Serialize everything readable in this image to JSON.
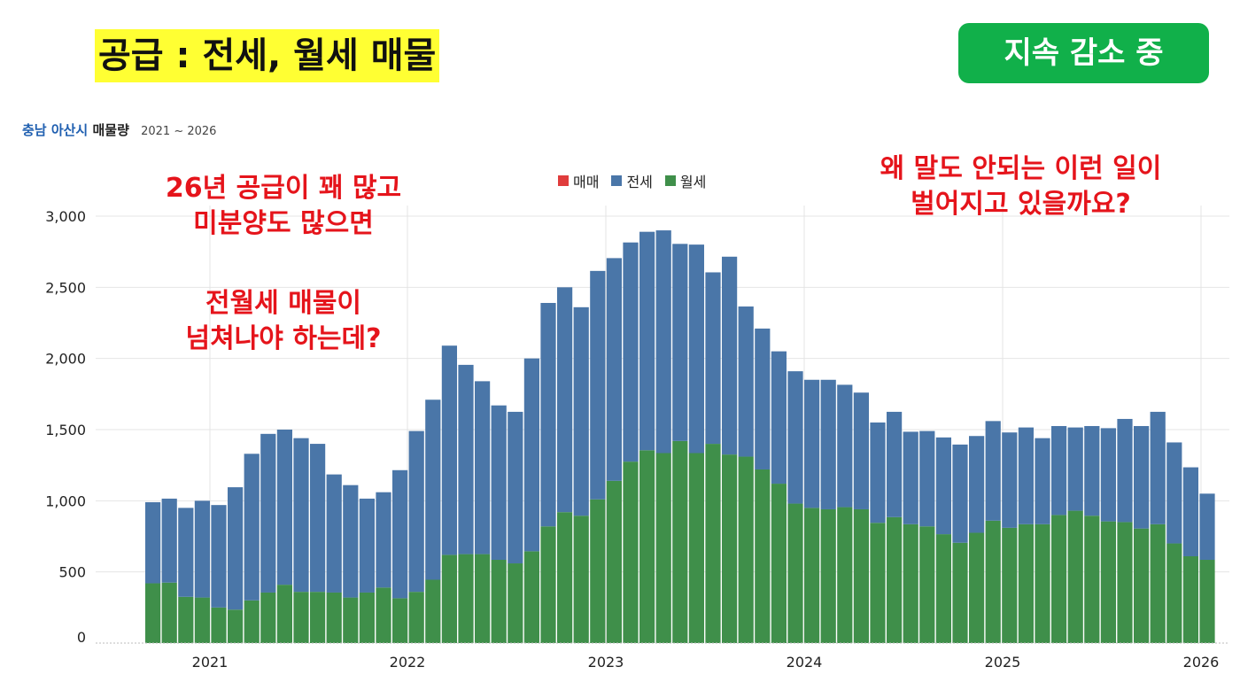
{
  "header": {
    "headline": "공급 : 전세, 월세 매물",
    "badge": "지속 감소 중"
  },
  "subtitle": {
    "region": "충남 아산시",
    "measure": "매물량",
    "period": "2021 ~ 2026"
  },
  "annotations": {
    "left_top_line1": "26년 공급이 꽤 많고",
    "left_top_line2": "미분양도 많으면",
    "left_bottom_line1": "전월세 매물이",
    "left_bottom_line2": "넘쳐나야 하는데?",
    "right_line1": "왜 말도 안되는 이런 일이",
    "right_line2": "벌어지고 있을까요?"
  },
  "colors": {
    "매매": "#e03c3c",
    "전세": "#4a76a8",
    "월세": "#3f8f4a",
    "grid": "#e4e4e4",
    "annotation": "#e5141b"
  },
  "chart_data": {
    "type": "bar",
    "stacked": true,
    "title": "",
    "xlabel": "",
    "ylabel": "",
    "ylim": [
      0,
      3000
    ],
    "yticks": [
      0,
      500,
      1000,
      1500,
      2000,
      2500,
      3000
    ],
    "ytick_labels": [
      "0",
      "500",
      "1,000",
      "1,500",
      "2,000",
      "2,500",
      "3,000"
    ],
    "xtick_labels": [
      "2021",
      "2022",
      "2023",
      "2024",
      "2025",
      "2026"
    ],
    "legend": [
      "매매",
      "전세",
      "월세"
    ],
    "legend_position": "top-center",
    "grid": true,
    "categories": [
      "2020-09",
      "2020-10",
      "2020-11",
      "2020-12",
      "2021-01",
      "2021-02",
      "2021-03",
      "2021-04",
      "2021-05",
      "2021-06",
      "2021-07",
      "2021-08",
      "2021-09",
      "2021-10",
      "2021-11",
      "2021-12",
      "2022-01",
      "2022-02",
      "2022-03",
      "2022-04",
      "2022-05",
      "2022-06",
      "2022-07",
      "2022-08",
      "2022-09",
      "2022-10",
      "2022-11",
      "2022-12",
      "2023-01",
      "2023-02",
      "2023-03",
      "2023-04",
      "2023-05",
      "2023-06",
      "2023-07",
      "2023-08",
      "2023-09",
      "2023-10",
      "2023-11",
      "2023-12",
      "2024-01",
      "2024-02",
      "2024-03",
      "2024-04",
      "2024-05",
      "2024-06",
      "2024-07",
      "2024-08",
      "2024-09",
      "2024-10",
      "2024-11",
      "2024-12",
      "2025-01",
      "2025-02",
      "2025-03",
      "2025-04",
      "2025-05",
      "2025-06",
      "2025-07",
      "2025-08",
      "2025-09",
      "2025-10",
      "2025-11",
      "2025-12",
      "2026-01"
    ],
    "series": [
      {
        "name": "매매",
        "values": [
          0,
          0,
          0,
          0,
          0,
          0,
          0,
          0,
          0,
          0,
          0,
          0,
          0,
          0,
          0,
          0,
          0,
          0,
          0,
          0,
          0,
          0,
          0,
          0,
          0,
          0,
          0,
          0,
          0,
          0,
          0,
          0,
          0,
          0,
          0,
          0,
          0,
          0,
          0,
          0,
          0,
          0,
          0,
          0,
          0,
          0,
          0,
          0,
          0,
          0,
          0,
          0,
          0,
          0,
          0,
          0,
          0,
          0,
          0,
          0,
          0,
          0,
          0,
          0,
          0
        ]
      },
      {
        "name": "전세",
        "values": [
          570,
          590,
          625,
          680,
          720,
          860,
          1030,
          1115,
          1090,
          1080,
          1040,
          830,
          790,
          660,
          670,
          900,
          1130,
          1265,
          1470,
          1330,
          1215,
          1085,
          1065,
          1355,
          1570,
          1580,
          1465,
          1605,
          1565,
          1540,
          1535,
          1565,
          1385,
          1465,
          1205,
          1390,
          1055,
          990,
          930,
          930,
          900,
          910,
          860,
          820,
          705,
          740,
          650,
          670,
          680,
          690,
          680,
          700,
          670,
          680,
          605,
          625,
          585,
          630,
          655,
          725,
          720,
          790,
          710,
          625,
          465
        ]
      },
      {
        "name": "월세",
        "values": [
          420,
          425,
          325,
          320,
          250,
          235,
          300,
          355,
          410,
          360,
          360,
          355,
          320,
          355,
          390,
          315,
          360,
          445,
          620,
          625,
          625,
          585,
          560,
          645,
          820,
          920,
          895,
          1010,
          1140,
          1275,
          1355,
          1335,
          1420,
          1335,
          1400,
          1325,
          1310,
          1220,
          1120,
          980,
          950,
          940,
          955,
          940,
          845,
          885,
          835,
          820,
          765,
          705,
          775,
          860,
          810,
          835,
          835,
          900,
          930,
          895,
          855,
          850,
          805,
          835,
          700,
          610,
          585
        ]
      }
    ]
  }
}
